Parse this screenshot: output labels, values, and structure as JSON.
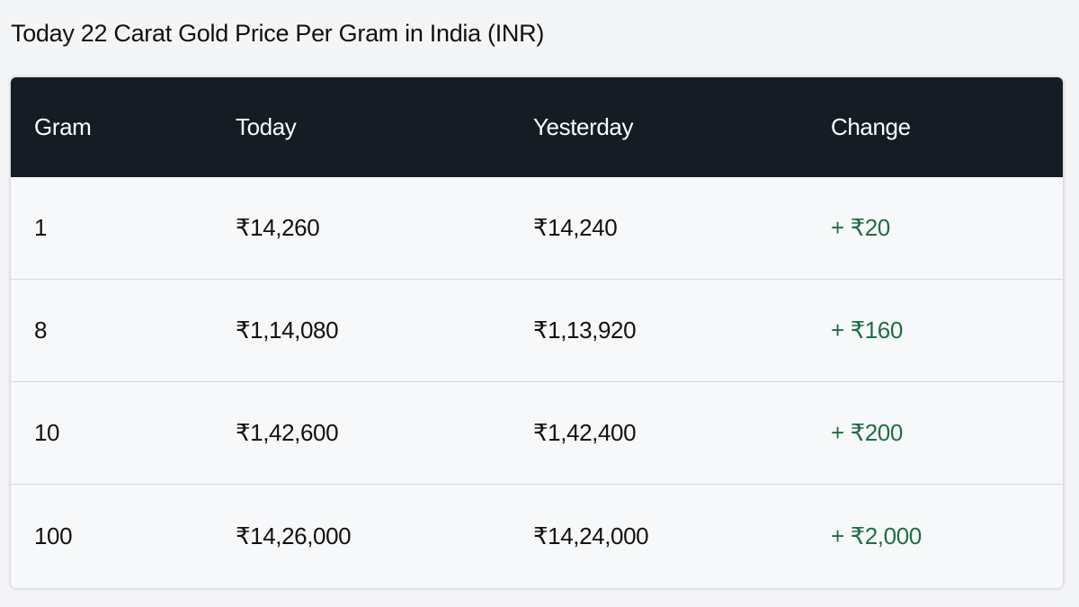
{
  "title": "Today 22 Carat Gold Price Per Gram in India (INR)",
  "table": {
    "headers": [
      "Gram",
      "Today",
      "Yesterday",
      "Change"
    ],
    "rows": [
      {
        "gram": "1",
        "today": "₹14,260",
        "yesterday": "₹14,240",
        "change": "+ ₹20"
      },
      {
        "gram": "8",
        "today": "₹1,14,080",
        "yesterday": "₹1,13,920",
        "change": "+ ₹160"
      },
      {
        "gram": "10",
        "today": "₹1,42,600",
        "yesterday": "₹1,42,400",
        "change": "+ ₹200"
      },
      {
        "gram": "100",
        "today": "₹14,26,000",
        "yesterday": "₹14,24,000",
        "change": "+ ₹2,000"
      }
    ]
  },
  "colors": {
    "header_bg": "#151c24",
    "change_positive": "#1f6e45"
  }
}
